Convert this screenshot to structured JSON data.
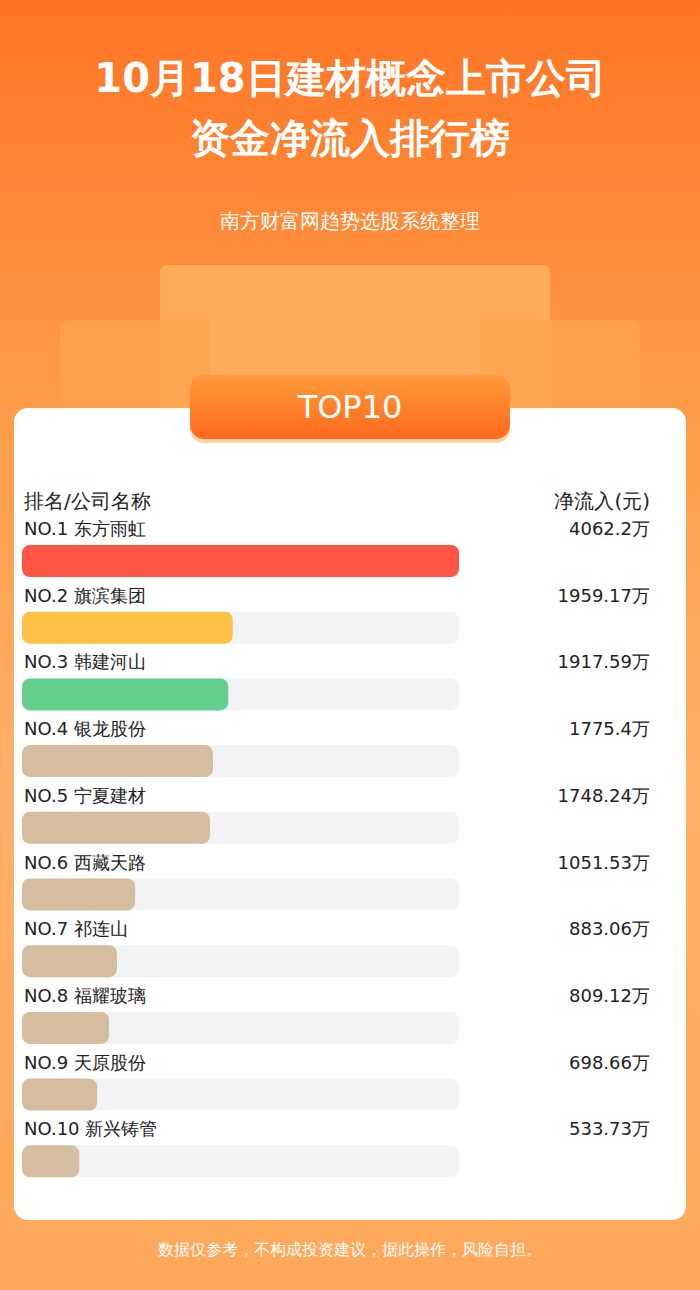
{
  "chart_data": {
    "type": "bar",
    "orientation": "horizontal",
    "title": "10月18日建材概念上市公司资金净流入排行榜",
    "subtitle": "南方财富网趋势选股系统整理",
    "annotations": [
      "TOP10",
      "排名/公司名称",
      "净流入(元)",
      "数据仅参考，不构成投资建议，据此操作，风险自担。"
    ],
    "categories": [
      "NO.1 东方雨虹",
      "NO.2 旗滨集团",
      "NO.3 韩建河山",
      "NO.4 银龙股份",
      "NO.5 宁夏建材",
      "NO.6 西藏天路",
      "NO.7 祁连山",
      "NO.8 福耀玻璃",
      "NO.9 天原股份",
      "NO.10 新兴铸管"
    ],
    "values": [
      4062.2,
      1959.17,
      1917.59,
      1775.4,
      1748.24,
      1051.53,
      883.06,
      809.12,
      698.66,
      533.73
    ],
    "value_labels": [
      "4062.2万",
      "1959.17万",
      "1917.59万",
      "1775.4万",
      "1748.24万",
      "1051.53万",
      "883.06万",
      "809.12万",
      "698.66万",
      "533.73万"
    ],
    "colors": [
      "#ff5544",
      "#ffc247",
      "#62cf8f",
      "#d5be9f",
      "#d5be9f",
      "#d5be9f",
      "#d5be9f",
      "#d5be9f",
      "#d5be9f",
      "#d5be9f"
    ],
    "xlim": [
      0,
      4062.2
    ],
    "data_labels": true,
    "tick_labels": false,
    "grid": false
  }
}
